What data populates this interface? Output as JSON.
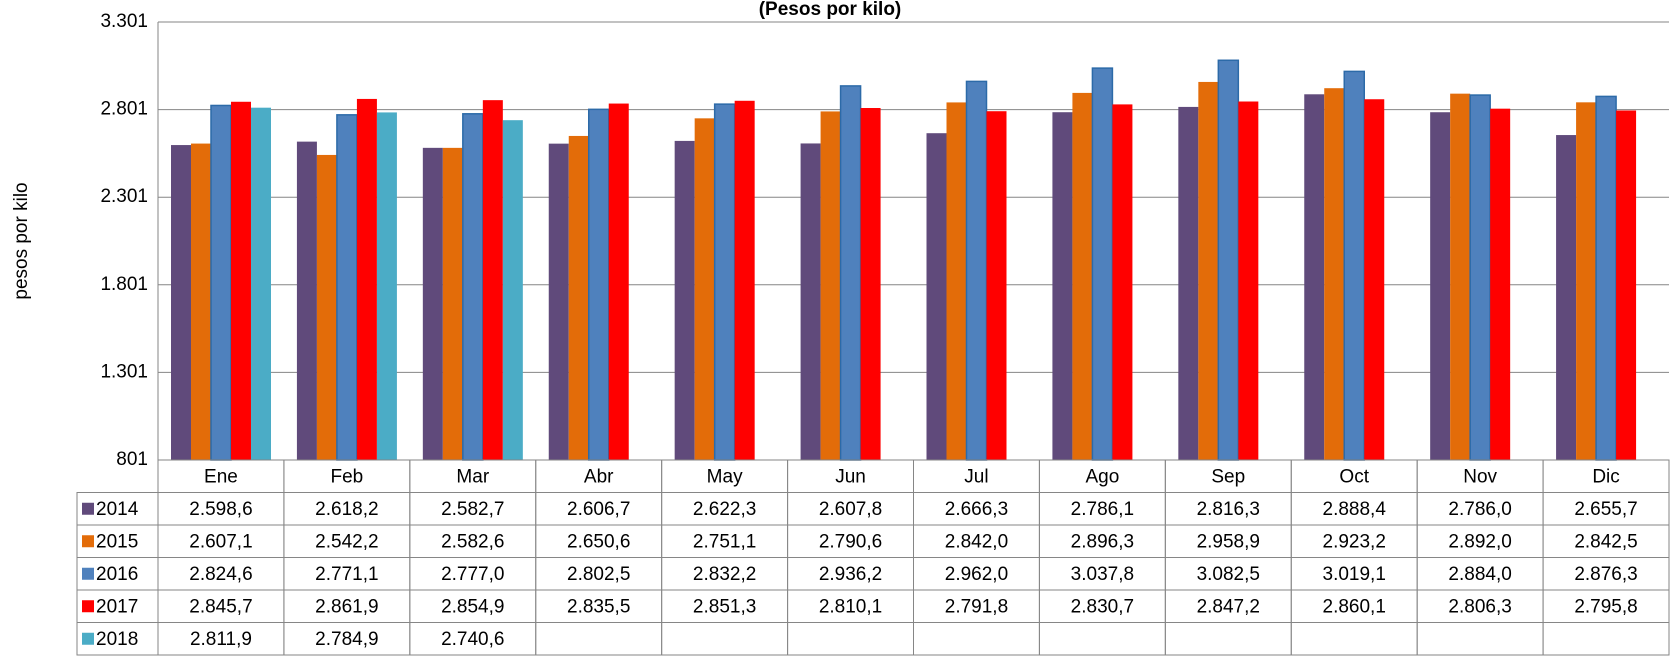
{
  "chart_data": {
    "type": "bar",
    "title": "(Pesos por kilo)",
    "y_label": "pesos por kilo",
    "categories": [
      "Ene",
      "Feb",
      "Mar",
      "Abr",
      "May",
      "Jun",
      "Jul",
      "Ago",
      "Sep",
      "Oct",
      "Nov",
      "Dic"
    ],
    "ylim": [
      801,
      3301
    ],
    "yticks": [
      801,
      {
        "value": 1301,
        "label": "1.301"
      },
      {
        "value": 1801,
        "label": "1.801"
      },
      {
        "value": 2301,
        "label": "2.301"
      },
      {
        "value": 2801,
        "label": "2.801"
      },
      {
        "value": 3301,
        "label": "3.301"
      }
    ],
    "grid": true,
    "series": [
      {
        "name": "2014",
        "color": "#604a7b",
        "values": [
          2598.6,
          2618.2,
          2582.7,
          2606.7,
          2622.3,
          2607.8,
          2666.3,
          2786.1,
          2816.3,
          2888.4,
          2786.0,
          2655.7
        ],
        "value_labels": [
          "2.598,6",
          "2.618,2",
          "2.582,7",
          "2.606,7",
          "2.622,3",
          "2.607,8",
          "2.666,3",
          "2.786,1",
          "2.816,3",
          "2.888,4",
          "2.786,0",
          "2.655,7"
        ]
      },
      {
        "name": "2015",
        "color": "#e36c09",
        "values": [
          2607.1,
          2542.2,
          2582.6,
          2650.6,
          2751.1,
          2790.6,
          2842.0,
          2896.3,
          2958.9,
          2923.2,
          2892.0,
          2842.5
        ],
        "value_labels": [
          "2.607,1",
          "2.542,2",
          "2.582,6",
          "2.650,6",
          "2.751,1",
          "2.790,6",
          "2.842,0",
          "2.896,3",
          "2.958,9",
          "2.923,2",
          "2.892,0",
          "2.842,5"
        ]
      },
      {
        "name": "2016",
        "color": "#4f81bd",
        "values": [
          2824.6,
          2771.1,
          2777.0,
          2802.5,
          2832.2,
          2936.2,
          2962.0,
          3037.8,
          3082.5,
          3019.1,
          2884.0,
          2876.3
        ],
        "value_labels": [
          "2.824,6",
          "2.771,1",
          "2.777,0",
          "2.802,5",
          "2.832,2",
          "2.936,2",
          "2.962,0",
          "3.037,8",
          "3.082,5",
          "3.019,1",
          "2.884,0",
          "2.876,3"
        ]
      },
      {
        "name": "2017",
        "color": "#ff0000",
        "values": [
          2845.7,
          2861.9,
          2854.9,
          2835.5,
          2851.3,
          2810.1,
          2791.8,
          2830.7,
          2847.2,
          2860.1,
          2806.3,
          2795.8
        ],
        "value_labels": [
          "2.845,7",
          "2.861,9",
          "2.854,9",
          "2.835,5",
          "2.851,3",
          "2.810,1",
          "2.791,8",
          "2.830,7",
          "2.847,2",
          "2.860,1",
          "2.806,3",
          "2.795,8"
        ]
      },
      {
        "name": "2018",
        "color": "#4bacc6",
        "values": [
          2811.9,
          2784.9,
          2740.6,
          null,
          null,
          null,
          null,
          null,
          null,
          null,
          null,
          null
        ],
        "value_labels": [
          "2.811,9",
          "2.784,9",
          "2.740,6",
          null,
          null,
          null,
          null,
          null,
          null,
          null,
          null,
          null
        ]
      }
    ]
  }
}
